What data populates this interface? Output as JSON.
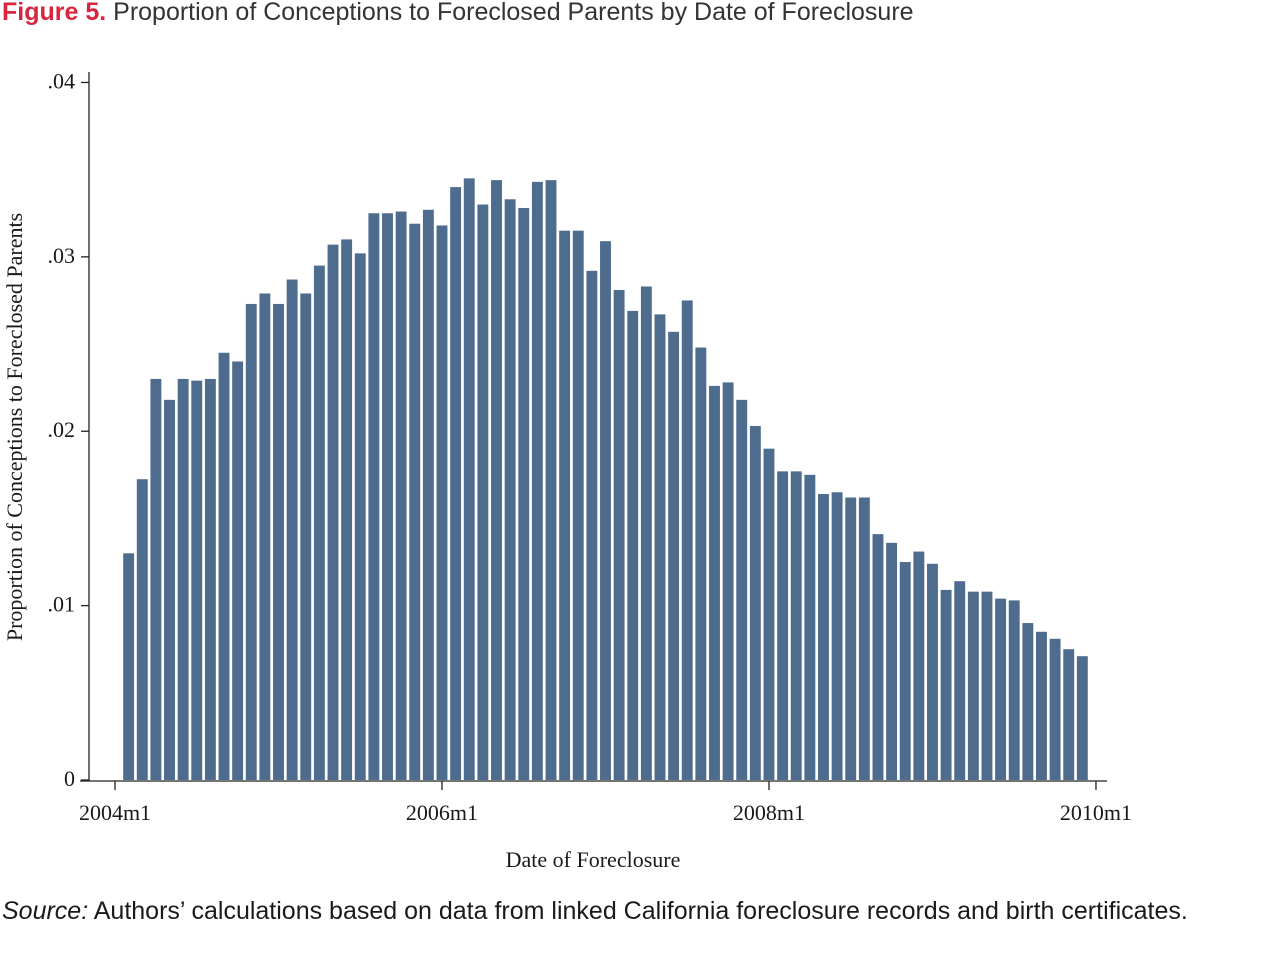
{
  "chart_data": {
    "type": "bar",
    "figure_label": "Figure 5.",
    "title": "Proportion of Conceptions to Foreclosed Parents by Date of Foreclosure",
    "xlabel": "Date of Foreclosure",
    "ylabel": "Proportion of Conceptions to Foreclosed Parents",
    "source_label": "Source:",
    "source_text": "Authors’ calculations based on data from linked California foreclosure records and birth certificates.",
    "color": "#4e6d8e",
    "x": [
      529,
      530,
      531,
      532,
      533,
      534,
      535,
      536,
      537,
      538,
      539,
      540,
      541,
      542,
      543,
      544,
      545,
      546,
      547,
      548,
      549,
      550,
      551,
      552,
      553,
      554,
      555,
      556,
      557,
      558,
      559,
      560,
      561,
      562,
      563,
      564,
      565,
      566,
      567,
      568,
      569,
      570,
      571,
      572,
      573,
      574,
      575,
      576,
      577,
      578,
      579,
      580,
      581,
      582,
      583,
      584,
      585,
      586,
      587,
      588,
      589,
      590,
      591,
      592,
      593,
      594,
      595,
      596,
      597,
      598,
      599
    ],
    "values": [
      0.013,
      0.01725,
      0.023,
      0.0218,
      0.023,
      0.0229,
      0.023,
      0.0245,
      0.024,
      0.0273,
      0.0279,
      0.0273,
      0.0287,
      0.0279,
      0.0295,
      0.0307,
      0.031,
      0.0302,
      0.0325,
      0.0325,
      0.0326,
      0.0319,
      0.0327,
      0.0318,
      0.034,
      0.0345,
      0.033,
      0.0344,
      0.0333,
      0.0328,
      0.0343,
      0.0344,
      0.0315,
      0.0315,
      0.0292,
      0.0309,
      0.0281,
      0.0269,
      0.0283,
      0.0267,
      0.0257,
      0.0275,
      0.0248,
      0.0226,
      0.0228,
      0.0218,
      0.0203,
      0.019,
      0.0177,
      0.0177,
      0.0175,
      0.0164,
      0.0165,
      0.0162,
      0.0162,
      0.0141,
      0.0136,
      0.0125,
      0.0131,
      0.0124,
      0.0109,
      0.0114,
      0.0108,
      0.0108,
      0.0104,
      0.0103,
      0.009,
      0.0085,
      0.0081,
      0.0075,
      0.0071
    ],
    "xlim": [
      525.43,
      600.81
    ],
    "xticks": [
      {
        "value": 528,
        "label": "2004m1"
      },
      {
        "value": 552,
        "label": "2006m1"
      },
      {
        "value": 576,
        "label": "2008m1"
      },
      {
        "value": 600,
        "label": "2010m1"
      }
    ],
    "ylim": [
      -5.7e-05,
      0.0406
    ],
    "yticks": [
      0,
      {
        "value": 0.01,
        "label": ".01"
      },
      {
        "value": 0.02,
        "label": ".02"
      },
      {
        "value": 0.03,
        "label": ".03"
      },
      {
        "value": 0.04,
        "label": ".04"
      }
    ]
  }
}
